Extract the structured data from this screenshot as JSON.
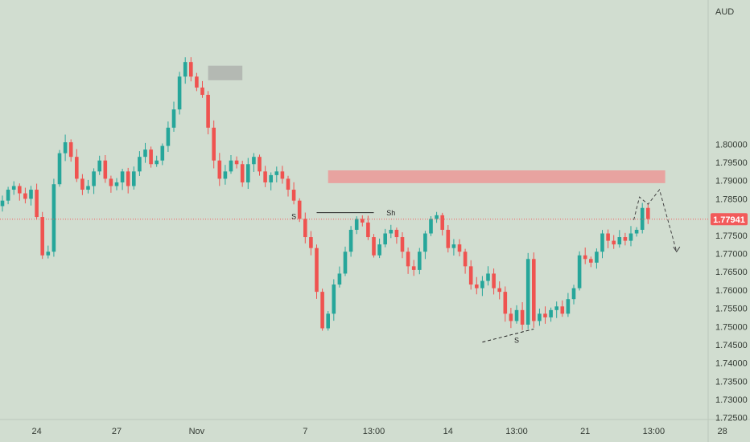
{
  "chart_data": {
    "type": "candlestick",
    "currency": "AUD",
    "last_price": "1.77941",
    "ylim": [
      1.7245,
      1.8395
    ],
    "y_ticks": [
      "1.80000",
      "1.79500",
      "1.79000",
      "1.78500",
      "1.78000",
      "1.77500",
      "1.77000",
      "1.76500",
      "1.76000",
      "1.75500",
      "1.75000",
      "1.74500",
      "1.74000",
      "1.73500",
      "1.73000",
      "1.72500"
    ],
    "x_ticks": [
      {
        "label": "24",
        "index": 6
      },
      {
        "label": "27",
        "index": 20
      },
      {
        "label": "Nov",
        "index": 34
      },
      {
        "label": "7",
        "index": 53
      },
      {
        "label": "13:00",
        "index": 65
      },
      {
        "label": "14",
        "index": 78
      },
      {
        "label": "13:00",
        "index": 90
      },
      {
        "label": "21",
        "index": 102
      },
      {
        "label": "13:00",
        "index": 114
      },
      {
        "label": "28",
        "index": 126
      }
    ],
    "closes": [
      1.7845,
      1.7875,
      1.7885,
      1.7865,
      1.785,
      1.7875,
      1.78,
      1.7695,
      1.7705,
      1.789,
      1.7975,
      1.8005,
      1.7965,
      1.7905,
      1.7875,
      1.7885,
      1.7925,
      1.7955,
      1.7905,
      1.7885,
      1.7895,
      1.7925,
      1.7885,
      1.7925,
      1.7965,
      1.7985,
      1.7945,
      1.7955,
      1.7995,
      1.8045,
      1.8095,
      1.8185,
      1.8225,
      1.8185,
      1.8155,
      1.8135,
      1.8045,
      1.7955,
      1.7905,
      1.7925,
      1.7955,
      1.7945,
      1.7895,
      1.7945,
      1.7965,
      1.7925,
      1.7895,
      1.7915,
      1.7925,
      1.7905,
      1.7875,
      1.7845,
      1.7795,
      1.7745,
      1.7715,
      1.7595,
      1.7495,
      1.7535,
      1.7615,
      1.7645,
      1.7705,
      1.7765,
      1.7795,
      1.7785,
      1.7745,
      1.7695,
      1.7725,
      1.7755,
      1.7765,
      1.7745,
      1.7705,
      1.7665,
      1.7655,
      1.7705,
      1.7755,
      1.7795,
      1.7805,
      1.7765,
      1.7715,
      1.7725,
      1.7705,
      1.7665,
      1.7615,
      1.7605,
      1.7625,
      1.7645,
      1.7605,
      1.7595,
      1.7535,
      1.7515,
      1.7545,
      1.7505,
      1.7685,
      1.7515,
      1.7535,
      1.7525,
      1.7545,
      1.7555,
      1.7535,
      1.7575,
      1.7605,
      1.7695,
      1.7685,
      1.7675,
      1.7705,
      1.7755,
      1.7735,
      1.7725,
      1.7745,
      1.7735,
      1.7755,
      1.7765,
      1.7825,
      1.7795
    ],
    "future_path": [
      {
        "index": 110.5,
        "price": 1.7792
      },
      {
        "index": 111.5,
        "price": 1.7855
      },
      {
        "index": 113,
        "price": 1.7835
      },
      {
        "index": 115,
        "price": 1.7875
      },
      {
        "index": 118,
        "price": 1.7705
      }
    ],
    "zones": [
      {
        "name": "supply-zone",
        "index_from": 36,
        "index_to": 42,
        "price_top": 1.8215,
        "price_bottom": 1.8175,
        "color": "#b4b9b3"
      },
      {
        "name": "red-zone",
        "index_from": 57,
        "index_to": 116,
        "price_top": 1.7928,
        "price_bottom": 1.7893,
        "color": "#e8a3a0"
      }
    ],
    "annotations": [
      {
        "text": "S",
        "index": 51,
        "price": 1.7795
      },
      {
        "text": "Sh",
        "index": 68,
        "price": 1.7805
      },
      {
        "text": "S",
        "index": 90,
        "price": 1.7455
      }
    ],
    "price_line_color": "#f25a5a",
    "up_color": "#26a69a",
    "down_color": "#ef5350"
  }
}
